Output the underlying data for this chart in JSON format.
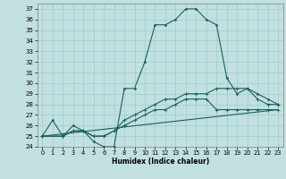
{
  "xlabel": "Humidex (Indice chaleur)",
  "background_color": "#c2e0e0",
  "grid_color": "#9ccece",
  "line_color": "#1a6060",
  "xlim": [
    -0.5,
    23.5
  ],
  "ylim": [
    24,
    37.5
  ],
  "xticks": [
    0,
    1,
    2,
    3,
    4,
    5,
    6,
    7,
    8,
    9,
    10,
    11,
    12,
    13,
    14,
    15,
    16,
    17,
    18,
    19,
    20,
    21,
    22,
    23
  ],
  "yticks": [
    24,
    25,
    26,
    27,
    28,
    29,
    30,
    31,
    32,
    33,
    34,
    35,
    36,
    37
  ],
  "curve1_x": [
    0,
    1,
    2,
    3,
    4,
    5,
    6,
    7,
    8,
    9,
    10,
    11,
    12,
    13,
    14,
    15,
    16,
    17,
    18,
    19,
    20,
    21,
    22,
    23
  ],
  "curve1_y": [
    25.0,
    26.5,
    25.0,
    26.0,
    25.5,
    24.5,
    24.0,
    24.0,
    29.5,
    29.5,
    32.0,
    35.5,
    35.5,
    36.0,
    37.0,
    37.0,
    36.0,
    35.5,
    30.5,
    29.0,
    29.5,
    29.0,
    28.5,
    28.0
  ],
  "curve2_x": [
    0,
    2,
    3,
    4,
    5,
    6,
    7,
    8,
    9,
    10,
    11,
    12,
    13,
    14,
    15,
    16,
    17,
    18,
    19,
    20,
    21,
    22,
    23
  ],
  "curve2_y": [
    25.0,
    25.0,
    25.5,
    25.5,
    25.0,
    25.0,
    25.5,
    26.5,
    27.0,
    27.5,
    28.0,
    28.5,
    28.5,
    29.0,
    29.0,
    29.0,
    29.5,
    29.5,
    29.5,
    29.5,
    28.5,
    28.0,
    28.0
  ],
  "curve3_x": [
    0,
    2,
    3,
    4,
    5,
    6,
    7,
    8,
    9,
    10,
    11,
    12,
    13,
    14,
    15,
    16,
    17,
    18,
    19,
    20,
    21,
    22,
    23
  ],
  "curve3_y": [
    25.0,
    25.0,
    25.5,
    25.5,
    25.0,
    25.0,
    25.5,
    26.0,
    26.5,
    27.0,
    27.5,
    27.5,
    28.0,
    28.5,
    28.5,
    28.5,
    27.5,
    27.5,
    27.5,
    27.5,
    27.5,
    27.5,
    27.5
  ],
  "curve4_x": [
    0,
    23
  ],
  "curve4_y": [
    25.0,
    27.5
  ]
}
